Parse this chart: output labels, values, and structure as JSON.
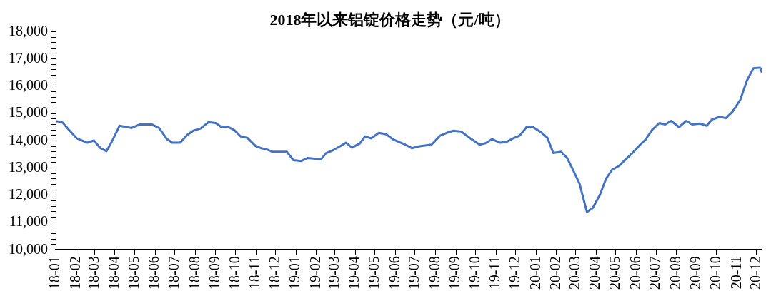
{
  "chart_data": {
    "type": "line",
    "title": "2018年以来铝锭价格走势（元/吨）",
    "x": [
      "2018-01-01",
      "2018-01-11",
      "2018-01-21",
      "2018-02-02",
      "2018-02-18",
      "2018-02-28",
      "2018-03-10",
      "2018-03-19",
      "2018-03-27",
      "2018-04-08",
      "2018-04-26",
      "2018-05-09",
      "2018-05-27",
      "2018-06-07",
      "2018-06-19",
      "2018-06-27",
      "2018-07-09",
      "2018-07-20",
      "2018-07-29",
      "2018-08-09",
      "2018-08-21",
      "2018-09-01",
      "2018-09-09",
      "2018-09-19",
      "2018-09-29",
      "2018-10-09",
      "2018-10-19",
      "2018-11-01",
      "2018-11-09",
      "2018-11-18",
      "2018-11-26",
      "2018-12-18",
      "2018-12-28",
      "2019-01-09",
      "2019-01-19",
      "2019-02-08",
      "2019-02-16",
      "2019-02-26",
      "2019-03-09",
      "2019-03-18",
      "2019-03-27",
      "2019-04-08",
      "2019-04-16",
      "2019-04-25",
      "2019-05-07",
      "2019-05-18",
      "2019-05-28",
      "2019-06-06",
      "2019-06-16",
      "2019-06-26",
      "2019-07-08",
      "2019-07-26",
      "2019-08-08",
      "2019-08-18",
      "2019-08-28",
      "2019-09-09",
      "2019-09-23",
      "2019-10-07",
      "2019-10-16",
      "2019-10-26",
      "2019-11-07",
      "2019-11-17",
      "2019-11-27",
      "2019-12-07",
      "2019-12-18",
      "2019-12-26",
      "2020-01-08",
      "2020-01-18",
      "2020-01-27",
      "2020-02-08",
      "2020-02-17",
      "2020-02-25",
      "2020-03-07",
      "2020-03-18",
      "2020-03-27",
      "2020-04-07",
      "2020-04-16",
      "2020-04-25",
      "2020-05-06",
      "2020-05-16",
      "2020-05-25",
      "2020-06-07",
      "2020-06-15",
      "2020-06-25",
      "2020-07-06",
      "2020-07-15",
      "2020-07-24",
      "2020-08-05",
      "2020-08-16",
      "2020-08-25",
      "2020-09-06",
      "2020-09-16",
      "2020-09-24",
      "2020-10-06",
      "2020-10-15",
      "2020-10-25",
      "2020-11-06",
      "2020-11-16",
      "2020-11-26",
      "2020-12-06",
      "2020-12-09"
    ],
    "series": [
      {
        "color": "#4472c4",
        "values": [
          14720,
          14680,
          14400,
          14090,
          13930,
          14010,
          13730,
          13620,
          13960,
          14550,
          14470,
          14600,
          14600,
          14470,
          14060,
          13930,
          13930,
          14220,
          14370,
          14450,
          14680,
          14650,
          14520,
          14520,
          14400,
          14160,
          14110,
          13800,
          13730,
          13680,
          13600,
          13600,
          13290,
          13260,
          13370,
          13320,
          13550,
          13650,
          13800,
          13930,
          13750,
          13900,
          14160,
          14090,
          14290,
          14240,
          14060,
          13960,
          13860,
          13730,
          13800,
          13860,
          14190,
          14290,
          14370,
          14340,
          14090,
          13860,
          13910,
          14060,
          13930,
          13960,
          14090,
          14190,
          14520,
          14520,
          14320,
          14110,
          13550,
          13600,
          13370,
          12980,
          12420,
          11390,
          11540,
          12030,
          12600,
          12930,
          13080,
          13320,
          13520,
          13860,
          14040,
          14400,
          14650,
          14600,
          14730,
          14500,
          14730,
          14600,
          14630,
          14550,
          14780,
          14880,
          14830,
          15060,
          15500,
          16200,
          16660,
          16680,
          16500
        ]
      }
    ],
    "xlim": [
      "2018-01-01",
      "2020-12-09"
    ],
    "xticks": [
      {
        "value": "2018-01",
        "label": "18-01"
      },
      {
        "value": "2018-02",
        "label": "18-02"
      },
      {
        "value": "2018-03",
        "label": "18-03"
      },
      {
        "value": "2018-04",
        "label": "18-04"
      },
      {
        "value": "2018-05",
        "label": "18-05"
      },
      {
        "value": "2018-06",
        "label": "18-06"
      },
      {
        "value": "2018-07",
        "label": "18-07"
      },
      {
        "value": "2018-08",
        "label": "18-08"
      },
      {
        "value": "2018-09",
        "label": "18-09"
      },
      {
        "value": "2018-10",
        "label": "18-10"
      },
      {
        "value": "2018-11",
        "label": "18-11"
      },
      {
        "value": "2018-12",
        "label": "18-12"
      },
      {
        "value": "2019-01",
        "label": "19-01"
      },
      {
        "value": "2019-02",
        "label": "19-02"
      },
      {
        "value": "2019-03",
        "label": "19-03"
      },
      {
        "value": "2019-04",
        "label": "19-04"
      },
      {
        "value": "2019-05",
        "label": "19-05"
      },
      {
        "value": "2019-06",
        "label": "19-06"
      },
      {
        "value": "2019-07",
        "label": "19-07"
      },
      {
        "value": "2019-08",
        "label": "19-08"
      },
      {
        "value": "2019-09",
        "label": "19-09"
      },
      {
        "value": "2019-10",
        "label": "19-10"
      },
      {
        "value": "2019-11",
        "label": "19-11"
      },
      {
        "value": "2019-12",
        "label": "19-12"
      },
      {
        "value": "2020-01",
        "label": "20-01"
      },
      {
        "value": "2020-02",
        "label": "20-02"
      },
      {
        "value": "2020-03",
        "label": "20-03"
      },
      {
        "value": "2020-04",
        "label": "20-04"
      },
      {
        "value": "2020-05",
        "label": "20-05"
      },
      {
        "value": "2020-06",
        "label": "20-06"
      },
      {
        "value": "2020-07",
        "label": "20-07"
      },
      {
        "value": "2020-08",
        "label": "20-08"
      },
      {
        "value": "2020-09",
        "label": "20-09"
      },
      {
        "value": "2020-10",
        "label": "20-10"
      },
      {
        "value": "2020-11",
        "label": "20-11"
      },
      {
        "value": "2020-12",
        "label": "20-12"
      }
    ],
    "ylim": [
      10000,
      18000
    ],
    "yticks": [
      {
        "value": 10000,
        "label": "10,000"
      },
      {
        "value": 10200,
        "label": null
      },
      {
        "value": 10400,
        "label": null
      },
      {
        "value": 10600,
        "label": null
      },
      {
        "value": 10800,
        "label": null
      },
      {
        "value": 11000,
        "label": "11,000"
      },
      {
        "value": 11200,
        "label": null
      },
      {
        "value": 11400,
        "label": null
      },
      {
        "value": 11600,
        "label": null
      },
      {
        "value": 11800,
        "label": null
      },
      {
        "value": 12000,
        "label": "12,000"
      },
      {
        "value": 12200,
        "label": null
      },
      {
        "value": 12400,
        "label": null
      },
      {
        "value": 12600,
        "label": null
      },
      {
        "value": 12800,
        "label": null
      },
      {
        "value": 13000,
        "label": "13,000"
      },
      {
        "value": 13200,
        "label": null
      },
      {
        "value": 13400,
        "label": null
      },
      {
        "value": 13600,
        "label": null
      },
      {
        "value": 13800,
        "label": null
      },
      {
        "value": 14000,
        "label": "14,000"
      },
      {
        "value": 14200,
        "label": null
      },
      {
        "value": 14400,
        "label": null
      },
      {
        "value": 14600,
        "label": null
      },
      {
        "value": 14800,
        "label": null
      },
      {
        "value": 15000,
        "label": "15,000"
      },
      {
        "value": 15200,
        "label": null
      },
      {
        "value": 15400,
        "label": null
      },
      {
        "value": 15600,
        "label": null
      },
      {
        "value": 15800,
        "label": null
      },
      {
        "value": 16000,
        "label": "16,000"
      },
      {
        "value": 16200,
        "label": null
      },
      {
        "value": 16400,
        "label": null
      },
      {
        "value": 16600,
        "label": null
      },
      {
        "value": 16800,
        "label": null
      },
      {
        "value": 17000,
        "label": "17,000"
      },
      {
        "value": 17200,
        "label": null
      },
      {
        "value": 17400,
        "label": null
      },
      {
        "value": 17600,
        "label": null
      },
      {
        "value": 17800,
        "label": null
      },
      {
        "value": 18000,
        "label": "18,000"
      }
    ],
    "grid": false,
    "legend": false,
    "marker": "none",
    "line_style": "solid"
  }
}
